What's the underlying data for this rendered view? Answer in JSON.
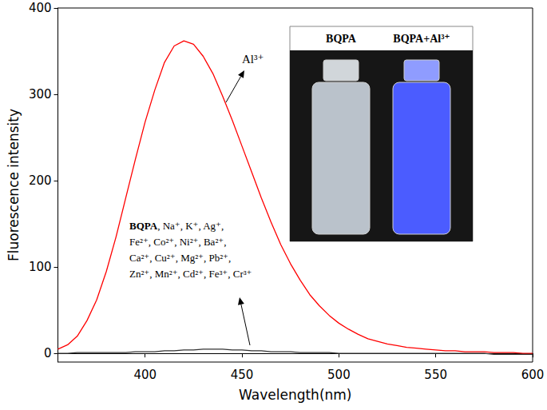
{
  "chart_data": {
    "type": "line",
    "x_label": "Wavelength(nm)",
    "y_label": "Fluorescence intensity",
    "x": [
      355,
      360,
      365,
      370,
      375,
      380,
      385,
      390,
      395,
      400,
      405,
      410,
      415,
      420,
      425,
      430,
      435,
      440,
      445,
      450,
      455,
      460,
      465,
      470,
      475,
      480,
      485,
      490,
      495,
      500,
      505,
      510,
      515,
      520,
      525,
      530,
      535,
      540,
      545,
      550,
      555,
      560,
      565,
      570,
      575,
      580,
      585,
      590,
      595,
      600
    ],
    "series": [
      {
        "name": "Al³⁺",
        "color": "#ff0000",
        "values": [
          5,
          10,
          20,
          38,
          62,
          95,
          135,
          180,
          225,
          268,
          305,
          337,
          356,
          362,
          358,
          344,
          324,
          298,
          270,
          240,
          210,
          180,
          152,
          126,
          104,
          85,
          68,
          55,
          44,
          35,
          28,
          22,
          17,
          14,
          11,
          9,
          7,
          6,
          5,
          4,
          3,
          3,
          2,
          2,
          2,
          1,
          1,
          1,
          0,
          0
        ]
      },
      {
        "name": "BQPA, Na⁺, K⁺, Ag⁺,\nFe²⁺, Co²⁺, Ni²⁺, Ba²⁺,\nCa²⁺, Cu²⁺, Mg²⁺, Pb²⁺,\nZn²⁺, Mn²⁺, Cd²⁺, Fe³⁺, Cr³⁺",
        "color": "#333333",
        "values": [
          0,
          0,
          1,
          1,
          1,
          1,
          1,
          1,
          2,
          2,
          2,
          3,
          3,
          4,
          4,
          5,
          5,
          5,
          4,
          4,
          3,
          3,
          2,
          2,
          2,
          1,
          1,
          1,
          1,
          0,
          0,
          0,
          0,
          0,
          0,
          0,
          0,
          0,
          0,
          0,
          0,
          0,
          0,
          0,
          0,
          -1,
          -1,
          -1,
          -1,
          -1
        ]
      }
    ],
    "xlim": [
      355,
      600
    ],
    "xticks": [
      400,
      450,
      500,
      550,
      600
    ],
    "ylim": [
      -10,
      400
    ],
    "yticks": [
      0,
      100,
      200,
      300,
      400
    ],
    "grid": false,
    "inset_labels": [
      "BQPA",
      "BQPA+Al³⁺"
    ]
  }
}
